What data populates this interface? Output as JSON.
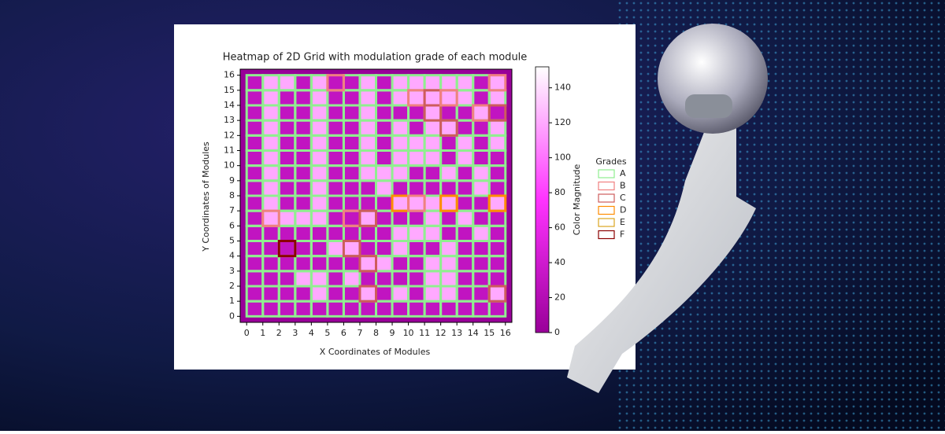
{
  "chart_data": {
    "type": "heatmap",
    "title": "Heatmap of 2D Grid with modulation grade of each module",
    "x_label": "X Coordinates of Modules",
    "y_label": "Y Coordinates of Modules",
    "xlim": [
      -0.4,
      16.4
    ],
    "ylim": [
      -0.4,
      16.4
    ],
    "xticks": [
      0,
      1,
      2,
      3,
      4,
      5,
      6,
      7,
      8,
      9,
      10,
      11,
      12,
      13,
      14,
      15,
      16
    ],
    "yticks": [
      0,
      1,
      2,
      3,
      4,
      5,
      6,
      7,
      8,
      9,
      10,
      11,
      12,
      13,
      14,
      15,
      16
    ],
    "values": [
      [
        30,
        30,
        30,
        30,
        30,
        30,
        30,
        30,
        30,
        30,
        30,
        30,
        30,
        30,
        30,
        30
      ],
      [
        30,
        30,
        30,
        30,
        120,
        30,
        30,
        120,
        30,
        120,
        30,
        120,
        120,
        30,
        30,
        120
      ],
      [
        30,
        30,
        30,
        120,
        120,
        30,
        120,
        30,
        30,
        30,
        30,
        120,
        120,
        30,
        30,
        30
      ],
      [
        30,
        30,
        30,
        30,
        30,
        30,
        30,
        120,
        120,
        30,
        30,
        120,
        120,
        30,
        30,
        30
      ],
      [
        30,
        30,
        30,
        30,
        30,
        120,
        120,
        30,
        30,
        120,
        30,
        30,
        120,
        30,
        30,
        30
      ],
      [
        30,
        30,
        30,
        30,
        30,
        30,
        30,
        30,
        30,
        120,
        120,
        120,
        30,
        30,
        120,
        30
      ],
      [
        30,
        120,
        120,
        120,
        120,
        30,
        30,
        120,
        30,
        30,
        30,
        120,
        30,
        120,
        30,
        30
      ],
      [
        30,
        120,
        30,
        30,
        120,
        30,
        30,
        30,
        30,
        120,
        120,
        120,
        120,
        30,
        30,
        120
      ],
      [
        30,
        120,
        30,
        30,
        120,
        30,
        30,
        30,
        120,
        30,
        30,
        30,
        30,
        30,
        120,
        30
      ],
      [
        30,
        120,
        30,
        30,
        120,
        30,
        30,
        120,
        120,
        120,
        30,
        30,
        120,
        30,
        120,
        30
      ],
      [
        30,
        120,
        30,
        30,
        120,
        30,
        30,
        120,
        30,
        120,
        120,
        120,
        30,
        120,
        30,
        30
      ],
      [
        30,
        120,
        30,
        30,
        120,
        30,
        30,
        120,
        30,
        120,
        120,
        120,
        30,
        120,
        30,
        120
      ],
      [
        30,
        120,
        30,
        30,
        120,
        30,
        30,
        120,
        30,
        120,
        30,
        120,
        120,
        30,
        30,
        120
      ],
      [
        30,
        120,
        30,
        30,
        120,
        30,
        30,
        120,
        30,
        30,
        30,
        120,
        30,
        30,
        120,
        30
      ],
      [
        30,
        120,
        30,
        30,
        120,
        30,
        30,
        120,
        30,
        120,
        120,
        120,
        120,
        120,
        30,
        120
      ],
      [
        30,
        120,
        120,
        30,
        120,
        30,
        30,
        120,
        30,
        120,
        120,
        120,
        120,
        120,
        30,
        120
      ]
    ],
    "grades": [
      [
        "A",
        "A",
        "A",
        "A",
        "A",
        "A",
        "A",
        "A",
        "A",
        "A",
        "A",
        "A",
        "A",
        "A",
        "A",
        "A"
      ],
      [
        "A",
        "A",
        "A",
        "A",
        "A",
        "A",
        "A",
        "C",
        "A",
        "A",
        "A",
        "A",
        "A",
        "A",
        "A",
        "C"
      ],
      [
        "A",
        "A",
        "A",
        "A",
        "A",
        "A",
        "A",
        "A",
        "A",
        "A",
        "A",
        "A",
        "A",
        "A",
        "A",
        "A"
      ],
      [
        "A",
        "A",
        "A",
        "A",
        "A",
        "A",
        "A",
        "C",
        "A",
        "A",
        "A",
        "A",
        "A",
        "A",
        "A",
        "A"
      ],
      [
        "A",
        "A",
        "F",
        "A",
        "A",
        "A",
        "C",
        "A",
        "A",
        "A",
        "A",
        "A",
        "A",
        "A",
        "A",
        "A"
      ],
      [
        "A",
        "A",
        "A",
        "A",
        "A",
        "A",
        "A",
        "A",
        "A",
        "A",
        "A",
        "A",
        "A",
        "A",
        "A",
        "A"
      ],
      [
        "A",
        "B",
        "A",
        "A",
        "A",
        "A",
        "B",
        "C",
        "A",
        "A",
        "A",
        "A",
        "A",
        "A",
        "A",
        "A"
      ],
      [
        "A",
        "A",
        "A",
        "A",
        "A",
        "A",
        "A",
        "A",
        "A",
        "D",
        "B",
        "A",
        "D",
        "A",
        "A",
        "D"
      ],
      [
        "A",
        "A",
        "A",
        "A",
        "A",
        "A",
        "A",
        "A",
        "A",
        "A",
        "A",
        "A",
        "A",
        "A",
        "A",
        "A"
      ],
      [
        "A",
        "A",
        "A",
        "A",
        "A",
        "A",
        "A",
        "A",
        "A",
        "A",
        "A",
        "A",
        "A",
        "A",
        "A",
        "A"
      ],
      [
        "A",
        "A",
        "A",
        "A",
        "A",
        "A",
        "A",
        "A",
        "A",
        "A",
        "A",
        "A",
        "A",
        "A",
        "A",
        "A"
      ],
      [
        "A",
        "A",
        "A",
        "A",
        "A",
        "A",
        "A",
        "A",
        "A",
        "A",
        "A",
        "A",
        "A",
        "A",
        "A",
        "A"
      ],
      [
        "A",
        "A",
        "A",
        "A",
        "A",
        "A",
        "A",
        "A",
        "A",
        "A",
        "A",
        "A",
        "C",
        "A",
        "A",
        "A"
      ],
      [
        "A",
        "A",
        "A",
        "A",
        "A",
        "A",
        "A",
        "A",
        "A",
        "A",
        "A",
        "C",
        "A",
        "A",
        "B",
        "C"
      ],
      [
        "A",
        "A",
        "A",
        "A",
        "A",
        "A",
        "A",
        "A",
        "A",
        "A",
        "B",
        "C",
        "B",
        "A",
        "A",
        "A"
      ],
      [
        "A",
        "A",
        "A",
        "A",
        "A",
        "B",
        "A",
        "A",
        "A",
        "A",
        "A",
        "A",
        "A",
        "A",
        "A",
        "B"
      ]
    ],
    "colorbar": {
      "label": "Color Magnitude",
      "lim": [
        0,
        152
      ],
      "ticks": [
        0,
        20,
        40,
        60,
        80,
        100,
        120,
        140
      ]
    },
    "legend": {
      "title": "Grades",
      "items": [
        {
          "name": "A",
          "color": "#90ee90"
        },
        {
          "name": "B",
          "color": "#f08080"
        },
        {
          "name": "C",
          "color": "#cd5c5c"
        },
        {
          "name": "D",
          "color": "#ff8c00"
        },
        {
          "name": "E",
          "color": "#daa520"
        },
        {
          "name": "F",
          "color": "#8b0000"
        }
      ]
    }
  }
}
